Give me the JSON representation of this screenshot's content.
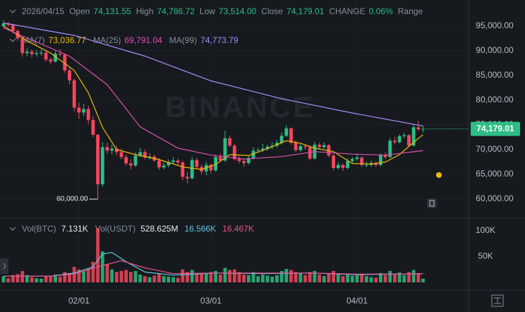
{
  "chart_data": {
    "type": "candlestick",
    "header": {
      "date": "2026/04/15",
      "items": [
        {
          "label": "Open",
          "value": "74,131.55"
        },
        {
          "label": "High",
          "value": "74,786.72"
        },
        {
          "label": "Low",
          "value": "73,514.00"
        },
        {
          "label": "Close",
          "value": "74,179.01"
        },
        {
          "label": "CHANGE",
          "value": "0.06%"
        },
        {
          "label": "Range"
        }
      ]
    },
    "watermark": "BINANCE",
    "up_color": "#2ebd85",
    "down_color": "#f6465d",
    "grid": true,
    "categories": [
      null,
      null,
      null,
      null,
      null,
      null,
      null,
      null,
      null,
      null,
      null,
      null,
      null,
      null,
      null,
      null,
      "02/01",
      null,
      null,
      null,
      null,
      null,
      null,
      null,
      null,
      null,
      null,
      null,
      null,
      null,
      null,
      null,
      null,
      null,
      null,
      null,
      null,
      null,
      null,
      null,
      null,
      null,
      null,
      null,
      "03/01",
      null,
      null,
      null,
      null,
      null,
      null,
      null,
      null,
      null,
      null,
      null,
      null,
      null,
      null,
      null,
      null,
      null,
      null,
      null,
      null,
      null,
      null,
      null,
      null,
      null,
      null,
      null,
      null,
      null,
      null,
      "04/01",
      null,
      null,
      null,
      null,
      null,
      null,
      null,
      null,
      null,
      null,
      null,
      null,
      null,
      null
    ],
    "candles": [
      [
        95000,
        96200,
        94600,
        95500
      ],
      [
        95500,
        95871,
        94800,
        95200
      ],
      [
        95200,
        95400,
        93500,
        94000
      ],
      [
        94000,
        94300,
        92000,
        92500
      ],
      [
        92500,
        92800,
        88800,
        89500
      ],
      [
        89500,
        90600,
        88900,
        89800
      ],
      [
        89800,
        90300,
        88700,
        89300
      ],
      [
        89300,
        90100,
        88800,
        89500
      ],
      [
        89500,
        90200,
        89000,
        89600
      ],
      [
        89600,
        89900,
        87800,
        88200
      ],
      [
        88200,
        88600,
        87200,
        87800
      ],
      [
        87800,
        89900,
        87600,
        89400
      ],
      [
        89400,
        90300,
        88800,
        89200
      ],
      [
        89200,
        89500,
        85500,
        86000
      ],
      [
        86000,
        86500,
        83200,
        84000
      ],
      [
        84000,
        84400,
        77800,
        78500
      ],
      [
        78500,
        79500,
        76200,
        77500
      ],
      [
        77500,
        79300,
        76800,
        78200
      ],
      [
        78200,
        78900,
        75200,
        76000
      ],
      [
        76000,
        76800,
        72500,
        73000
      ],
      [
        73000,
        73200,
        60000,
        63000
      ],
      [
        63000,
        71500,
        62500,
        70500
      ],
      [
        70500,
        71400,
        69200,
        69800
      ],
      [
        69800,
        71000,
        69000,
        70200
      ],
      [
        70200,
        70800,
        68800,
        69500
      ],
      [
        69500,
        70200,
        68000,
        68500
      ],
      [
        68500,
        69000,
        66800,
        67200
      ],
      [
        67200,
        68000,
        66000,
        66800
      ],
      [
        66800,
        69500,
        66500,
        68800
      ],
      [
        68800,
        70300,
        68500,
        69500
      ],
      [
        69500,
        70000,
        68000,
        68400
      ],
      [
        68400,
        69300,
        67900,
        68600
      ],
      [
        68600,
        69000,
        67500,
        67800
      ],
      [
        67800,
        68300,
        65900,
        66400
      ],
      [
        66400,
        67500,
        66000,
        66800
      ],
      [
        66800,
        68000,
        66400,
        67500
      ],
      [
        67500,
        68500,
        67000,
        67800
      ],
      [
        67800,
        68200,
        66800,
        67400
      ],
      [
        67400,
        67800,
        63800,
        64500
      ],
      [
        64500,
        65500,
        63200,
        64200
      ],
      [
        64200,
        68500,
        64000,
        67900
      ],
      [
        67900,
        68300,
        66000,
        66500
      ],
      [
        66500,
        67000,
        65000,
        65600
      ],
      [
        65600,
        67500,
        64800,
        66900
      ],
      [
        66900,
        67300,
        65200,
        65800
      ],
      [
        65800,
        69000,
        65500,
        68500
      ],
      [
        68500,
        69200,
        67500,
        67800
      ],
      [
        67800,
        73800,
        67500,
        72300
      ],
      [
        72300,
        72800,
        70500,
        70800
      ],
      [
        70800,
        71200,
        67800,
        68100
      ],
      [
        68100,
        68700,
        67200,
        67700
      ],
      [
        67700,
        68100,
        66500,
        67300
      ],
      [
        67300,
        68800,
        67000,
        68300
      ],
      [
        68300,
        70500,
        68000,
        69800
      ],
      [
        69800,
        70400,
        69300,
        69900
      ],
      [
        69900,
        71200,
        69500,
        70200
      ],
      [
        70200,
        71000,
        69800,
        70600
      ],
      [
        70600,
        71500,
        70100,
        70800
      ],
      [
        70800,
        72000,
        70400,
        71400
      ],
      [
        71400,
        73500,
        71000,
        72800
      ],
      [
        72800,
        74900,
        72500,
        74300
      ],
      [
        74300,
        74500,
        71000,
        71400
      ],
      [
        71400,
        71900,
        69500,
        69900
      ],
      [
        69900,
        71300,
        69600,
        70700
      ],
      [
        70700,
        71200,
        70000,
        70500
      ],
      [
        70500,
        70900,
        67800,
        68200
      ],
      [
        68200,
        71600,
        68000,
        71000
      ],
      [
        71000,
        71400,
        70100,
        70500
      ],
      [
        70500,
        71500,
        70200,
        70900
      ],
      [
        70900,
        71200,
        68500,
        68800
      ],
      [
        68800,
        69100,
        65800,
        66300
      ],
      [
        66300,
        67500,
        66000,
        66900
      ],
      [
        66900,
        67200,
        65700,
        66300
      ],
      [
        66300,
        68200,
        66000,
        67700
      ],
      [
        67700,
        68500,
        67300,
        68100
      ],
      [
        68100,
        69000,
        67800,
        68400
      ],
      [
        68400,
        68600,
        66500,
        66900
      ],
      [
        66900,
        67600,
        66500,
        66900
      ],
      [
        66900,
        67800,
        66600,
        67300
      ],
      [
        67300,
        67600,
        66500,
        66900
      ],
      [
        66900,
        69300,
        66700,
        68900
      ],
      [
        68900,
        69400,
        68100,
        68500
      ],
      [
        68500,
        72300,
        68300,
        71800
      ],
      [
        71800,
        72600,
        71100,
        71500
      ],
      [
        71500,
        73100,
        71200,
        72700
      ],
      [
        72700,
        73400,
        72300,
        72900
      ],
      [
        72900,
        73100,
        70500,
        70800
      ],
      [
        70800,
        75000,
        70600,
        74500
      ],
      [
        74500,
        75800,
        73800,
        74100
      ],
      [
        74131.55,
        74786.72,
        73514,
        74179.01
      ]
    ],
    "ylim": [
      56300,
      99100
    ],
    "yticks": [
      {
        "value": 95000,
        "label": "95,000.00"
      },
      {
        "value": 90000,
        "label": "90,000.00"
      },
      {
        "value": 85000,
        "label": "85,000.00"
      },
      {
        "value": 80000,
        "label": "80,000.00"
      },
      {
        "value": 75000,
        "label": "75,000.00"
      },
      {
        "value": 70000,
        "label": "70,000.00"
      },
      {
        "value": 65000,
        "label": "65,000.00"
      },
      {
        "value": 60000,
        "label": "60,000.00"
      }
    ],
    "last_price_label": "74,179.01",
    "low_label": "60,000.00",
    "ma_lines": [
      {
        "name": "MA(7)",
        "legend_value": "73,036.77",
        "color": "#f0b90b",
        "x": [
          0,
          5,
          10,
          15,
          18,
          21,
          24,
          28,
          33,
          38,
          42,
          45,
          48,
          52,
          56,
          60,
          63,
          66,
          70,
          74,
          78,
          81,
          84,
          87,
          89
        ],
        "values": [
          95000,
          92000,
          89500,
          86000,
          81500,
          74500,
          70000,
          69000,
          68000,
          66500,
          66000,
          67000,
          69000,
          68800,
          70200,
          71800,
          71300,
          70300,
          69600,
          67200,
          67100,
          67500,
          69000,
          71500,
          73037
        ]
      },
      {
        "name": "MA(25)",
        "legend_value": "69,791.04",
        "color": "#e04fb5",
        "x": [
          0,
          14,
          22,
          29,
          37,
          44,
          51,
          59,
          66,
          74,
          81,
          89
        ],
        "values": [
          94600,
          88900,
          83100,
          74600,
          70300,
          68900,
          68100,
          68600,
          69600,
          69100,
          68900,
          69800
        ]
      },
      {
        "name": "MA(99)",
        "legend_value": "74,773.79",
        "color": "#a78bfa",
        "x": [
          0,
          15,
          30,
          44,
          59,
          74,
          89
        ],
        "values": [
          95600,
          93100,
          88900,
          83900,
          80300,
          77400,
          74774
        ]
      }
    ],
    "volume": {
      "title": "Vol(BTC)",
      "value_label": "7.131K",
      "title2": "Vol(USDT)",
      "value_label2": "528.625M",
      "values": [
        12000,
        8000,
        14000,
        16000,
        22000,
        14000,
        10000,
        8000,
        7000,
        12000,
        13000,
        15000,
        11000,
        20000,
        18000,
        30000,
        25000,
        22000,
        27000,
        40000,
        105000,
        60000,
        35000,
        25000,
        20000,
        22000,
        24000,
        20000,
        22000,
        15000,
        12000,
        10000,
        13000,
        17000,
        12000,
        11000,
        10000,
        9000,
        25000,
        20000,
        24000,
        16000,
        18000,
        17000,
        20000,
        22000,
        15000,
        28000,
        24000,
        25000,
        20000,
        15000,
        14000,
        20000,
        12000,
        15000,
        13000,
        11000,
        14000,
        22000,
        26000,
        24000,
        20000,
        18000,
        14000,
        20000,
        22000,
        15000,
        12000,
        18000,
        22000,
        16000,
        12000,
        15000,
        13000,
        14000,
        16000,
        12000,
        10000,
        9000,
        18000,
        14000,
        22000,
        17000,
        19000,
        14000,
        20000,
        24000,
        18000,
        7131
      ],
      "ylim": [
        0,
        123000
      ],
      "yticks": [
        {
          "value": 100000,
          "label": "100K"
        },
        {
          "value": 50000,
          "label": "50K"
        }
      ],
      "ma_lines": [
        {
          "legend_value": "16.566K",
          "color": "#5ec8e6",
          "x": [
            0,
            10,
            15,
            19,
            21,
            23,
            26,
            30,
            36,
            45,
            55,
            65,
            75,
            89
          ],
          "values": [
            12000,
            12000,
            18000,
            30000,
            55000,
            58000,
            40000,
            20000,
            14000,
            18000,
            17000,
            18000,
            15000,
            16566
          ]
        },
        {
          "legend_value": "16.467K",
          "color": "#e9508a",
          "x": [
            0,
            10,
            15,
            20,
            25,
            30,
            36,
            45,
            55,
            65,
            75,
            89
          ],
          "values": [
            12000,
            12000,
            16000,
            30000,
            42000,
            28000,
            17000,
            18000,
            18000,
            18000,
            16000,
            16467
          ]
        }
      ]
    }
  }
}
